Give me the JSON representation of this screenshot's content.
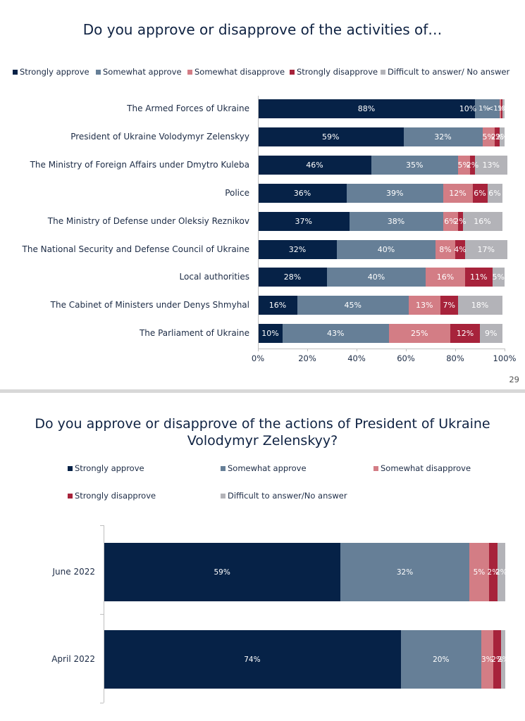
{
  "slides": [
    {
      "page_number": "29"
    },
    {
      "page_number": ""
    }
  ],
  "colors": {
    "strongly_approve": "#062247",
    "somewhat_approve": "#667f97",
    "somewhat_disapprove": "#d37d85",
    "strongly_disapprove": "#a7233b",
    "difficult": "#b3b3b8"
  },
  "chart_data": [
    {
      "type": "bar",
      "orientation": "horizontal-stacked-100",
      "title": "Do you approve or disapprove of the activities of…",
      "legend": [
        "Strongly approve",
        "Somewhat approve",
        "Somewhat disapprove",
        "Strongly disapprove",
        "Difficult to answer/ No answer"
      ],
      "legend_position": "top",
      "categories": [
        "The Armed Forces of Ukraine",
        "President of Ukraine Volodymyr Zelenskyy",
        "The Ministry of Foreign Affairs under Dmytro Kuleba",
        "Police",
        "The Ministry of Defense under Oleksiy Reznikov",
        "The National Security and Defense Council of Ukraine",
        "Local authorities",
        "The Cabinet of Ministers under Denys Shmyhal",
        "The Parliament of Ukraine"
      ],
      "series": [
        {
          "name": "Strongly approve",
          "values": [
            88,
            59,
            46,
            36,
            37,
            32,
            28,
            16,
            10
          ],
          "labels": [
            "88%",
            "59%",
            "46%",
            "36%",
            "37%",
            "32%",
            "28%",
            "16%",
            "10%"
          ]
        },
        {
          "name": "Somewhat approve",
          "values": [
            10,
            32,
            35,
            39,
            38,
            40,
            40,
            45,
            43
          ],
          "labels": [
            "10%",
            "32%",
            "35%",
            "39%",
            "38%",
            "40%",
            "40%",
            "45%",
            "43%"
          ]
        },
        {
          "name": "Somewhat disapprove",
          "values": [
            0.5,
            5,
            5,
            12,
            6,
            8,
            16,
            13,
            25
          ],
          "labels": [
            "<1%",
            "5%",
            "5%",
            "12%",
            "6%",
            "8%",
            "16%",
            "13%",
            "25%"
          ]
        },
        {
          "name": "Strongly disapprove",
          "values": [
            0.5,
            2,
            2,
            6,
            2,
            4,
            11,
            7,
            12
          ],
          "labels": [
            "<1%",
            "2%",
            "2%",
            "6%",
            "2%",
            "4%",
            "11%",
            "7%",
            "12%"
          ]
        },
        {
          "name": "Difficult to answer/ No answer",
          "values": [
            1,
            2,
            13,
            6,
            16,
            17,
            5,
            18,
            9
          ],
          "labels": [
            "1%",
            "2%",
            "13%",
            "6%",
            "16%",
            "17%",
            "5%",
            "18%",
            "9%"
          ]
        }
      ],
      "first_row_extra_label": "1%",
      "xlim": [
        0,
        100
      ],
      "xticks": [
        "0%",
        "20%",
        "40%",
        "60%",
        "80%",
        "100%"
      ],
      "grid": false
    },
    {
      "type": "bar",
      "orientation": "horizontal-stacked-100",
      "title": "Do you approve or disapprove of the actions of President of Ukraine Volodymyr Zelenskyy?",
      "legend": [
        "Strongly approve",
        "Somewhat approve",
        "Somewhat disapprove",
        "Strongly disapprove",
        "Difficult to answer/No answer"
      ],
      "legend_position": "top",
      "categories": [
        "June 2022",
        "April 2022"
      ],
      "series": [
        {
          "name": "Strongly approve",
          "values": [
            59,
            74
          ],
          "labels": [
            "59%",
            "74%"
          ]
        },
        {
          "name": "Somewhat approve",
          "values": [
            32,
            20
          ],
          "labels": [
            "32%",
            "20%"
          ]
        },
        {
          "name": "Somewhat disapprove",
          "values": [
            5,
            3
          ],
          "labels": [
            "5%",
            "3%"
          ]
        },
        {
          "name": "Strongly disapprove",
          "values": [
            2,
            2
          ],
          "labels": [
            "2%",
            "2%"
          ]
        },
        {
          "name": "Difficult to answer/No answer",
          "values": [
            2,
            2
          ],
          "labels": [
            "2%",
            "2%"
          ]
        }
      ],
      "xlim": [
        0,
        100
      ],
      "grid": false
    }
  ]
}
